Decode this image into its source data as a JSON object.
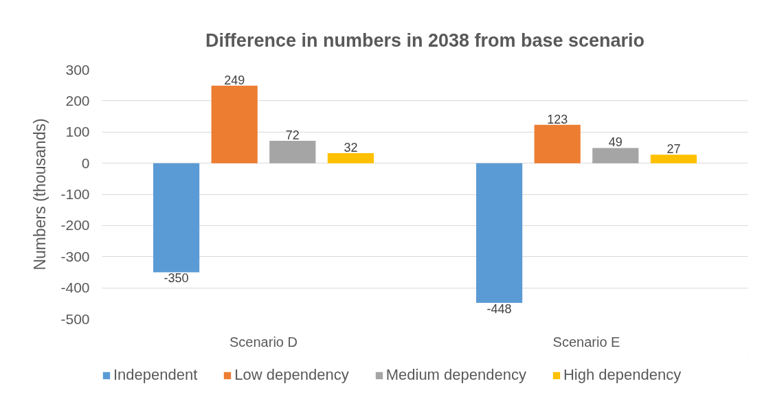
{
  "chart_data": {
    "type": "bar",
    "title": "Difference in numbers in 2038 from base scenario",
    "ylabel": "Numbers (thousands)",
    "categories": [
      "Scenario D",
      "Scenario E"
    ],
    "series": [
      {
        "name": "Independent",
        "color": "#5b9bd5",
        "values": [
          -350,
          -448
        ]
      },
      {
        "name": "Low dependency",
        "color": "#ed7d31",
        "values": [
          249,
          123
        ]
      },
      {
        "name": "Medium dependency",
        "color": "#a5a5a5",
        "values": [
          72,
          49
        ]
      },
      {
        "name": "High dependency",
        "color": "#ffc000",
        "values": [
          32,
          27
        ]
      }
    ],
    "ylim": [
      -500,
      300
    ],
    "yticks": [
      -500,
      -400,
      -300,
      -200,
      -100,
      0,
      100,
      200,
      300
    ],
    "grid": "y",
    "legend": "bottom",
    "data_labels": true
  }
}
